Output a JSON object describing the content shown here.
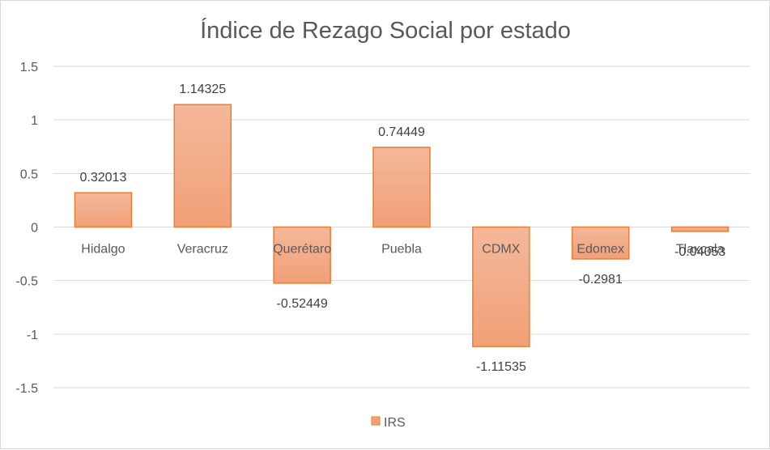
{
  "chart_data": {
    "type": "bar",
    "title": "Índice de Rezago Social por estado",
    "categories": [
      "Hidalgo",
      "Veracruz",
      "Querétaro",
      "Puebla",
      "CDMX",
      "Edomex",
      "Tlaxcala"
    ],
    "series": [
      {
        "name": "IRS",
        "values": [
          0.32013,
          1.14325,
          -0.52449,
          0.74449,
          -1.11535,
          -0.2981,
          -0.04053
        ],
        "labels": [
          "0.32013",
          "1.14325",
          "-0.52449",
          "0.74449",
          "-1.11535",
          "-0.2981",
          "-0.04053"
        ]
      }
    ],
    "ylim": [
      -1.5,
      1.5
    ],
    "yticks": [
      1.5,
      1,
      0.5,
      0,
      -0.5,
      -1,
      -1.5
    ],
    "ytick_labels": [
      "1.5",
      "1",
      "0.5",
      "0",
      "-0.5",
      "-1",
      "-1.5"
    ],
    "grid": true,
    "legend_position": "bottom",
    "xlabel": "",
    "ylabel": "",
    "colors": {
      "bar_fill_top": "#f4b89a",
      "bar_fill_bottom": "#f1a077",
      "bar_stroke": "#ed7d31"
    }
  }
}
